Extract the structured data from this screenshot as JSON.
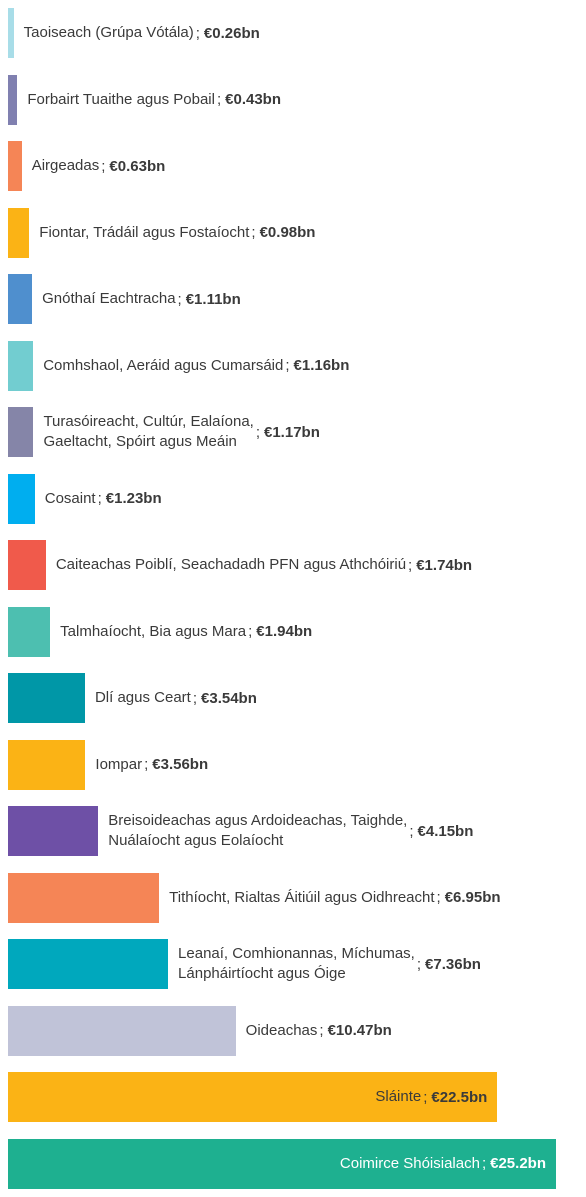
{
  "chart_data": {
    "type": "bar",
    "orientation": "horizontal",
    "separator": ";",
    "categories": [
      "Taoiseach (Grúpa Vótála)",
      "Forbairt Tuaithe agus Pobail",
      "Airgeadas",
      "Fiontar, Trádáil agus Fostaíocht",
      "Gnóthaí Eachtracha",
      "Comhshaol, Aeráid agus Cumarsáid",
      "Turasóireacht, Cultúr, Ealaíona,\nGaeltacht, Spóirt agus Meáin",
      "Cosaint",
      "Caiteachas Poiblí, Seachadadh PFN agus Athchóiriú",
      "Talmhaíocht, Bia agus Mara",
      "Dlí agus Ceart",
      "Iompar",
      "Breisoideachas agus Ardoideachas, Taighde,\nNuálaíocht agus Eolaíocht",
      "Tithíocht, Rialtas Áitiúil agus Oidhreacht",
      "Leanaí, Comhionannas, Míchumas,\nLánpháirtíocht agus Óige",
      "Oideachas",
      "Sláinte",
      "Coimirce Shóisialach"
    ],
    "values": [
      0.26,
      0.43,
      0.63,
      0.98,
      1.11,
      1.16,
      1.17,
      1.23,
      1.74,
      1.94,
      3.54,
      3.56,
      4.15,
      6.95,
      7.36,
      10.47,
      22.5,
      25.2
    ],
    "value_labels": [
      "€0.26bn",
      "€0.43bn",
      "€0.63bn",
      "€0.98bn",
      "€1.11bn",
      "€1.16bn",
      "€1.17bn",
      "€1.23bn",
      "€1.74bn",
      "€1.94bn",
      "€3.54bn",
      "€3.56bn",
      "€4.15bn",
      "€6.95bn",
      "€7.36bn",
      "€10.47bn",
      "€22.5bn",
      "€25.2bn"
    ],
    "colors": [
      "#a8dde8",
      "#8080b0",
      "#f58556",
      "#fbb315",
      "#4f8fce",
      "#72cdd0",
      "#8585a8",
      "#00aeef",
      "#f05a4b",
      "#4dbfb0",
      "#0097a7",
      "#fbb315",
      "#6e50a6",
      "#f58556",
      "#00a8bd",
      "#c0c3d8",
      "#fbb315",
      "#1eb090"
    ]
  }
}
